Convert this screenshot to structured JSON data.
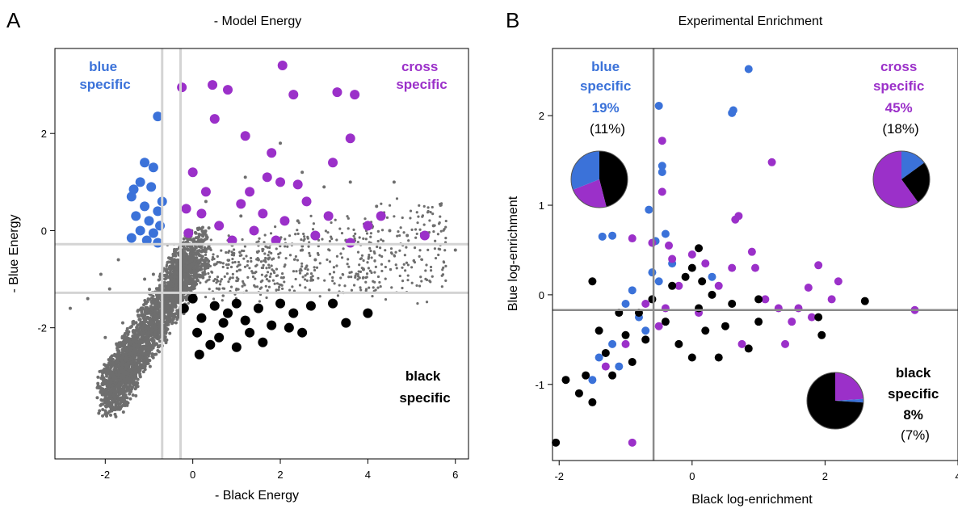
{
  "colors": {
    "blue": "#3b72d9",
    "purple": "#9b30c9",
    "black": "#000000",
    "grey": "#6e6e6e",
    "gridline_a": "#d4d4d4",
    "gridline_b": "#8a8a8a"
  },
  "chart_data": [
    {
      "type": "scatter",
      "panel_letter": "A",
      "title": "- Model Energy",
      "xlabel": "- Black Energy",
      "ylabel": "- Blue Energy",
      "xlim": [
        -3.15,
        6.3
      ],
      "ylim": [
        -4.7,
        3.75
      ],
      "xticks": [
        -2,
        0,
        2,
        4,
        6
      ],
      "yticks": [
        -2,
        0,
        2
      ],
      "thresholds": {
        "x": [
          -0.7,
          -0.28
        ],
        "y": [
          -0.28,
          -1.28
        ]
      },
      "grid": false,
      "annotations": [
        {
          "lines": [
            "blue",
            "specific"
          ],
          "color_key": "blue"
        },
        {
          "lines": [
            "cross",
            "specific"
          ],
          "color_key": "purple"
        },
        {
          "lines": [
            "black",
            "specific"
          ],
          "color_key": "black"
        }
      ],
      "series": [
        {
          "color_key": "grey",
          "points": [
            [
              -1.8,
              -3.0
            ],
            [
              -1.6,
              -2.6
            ],
            [
              -1.4,
              -2.3
            ],
            [
              -1.2,
              -2.0
            ],
            [
              -1.0,
              -1.7
            ],
            [
              -0.8,
              -1.3
            ],
            [
              -0.6,
              -0.8
            ],
            [
              -0.4,
              -0.4
            ],
            [
              0.5,
              -0.7
            ],
            [
              1.5,
              -0.6
            ],
            [
              2.5,
              -0.4
            ],
            [
              3.5,
              -0.2
            ],
            [
              4.5,
              0.0
            ],
            [
              5.5,
              0.1
            ],
            [
              6.0,
              -0.4
            ],
            [
              2.0,
              1.8
            ],
            [
              2.5,
              1.2
            ],
            [
              3.0,
              0.9
            ],
            [
              3.6,
              1.0
            ],
            [
              4.6,
              1.0
            ],
            [
              4.2,
              0.5
            ],
            [
              0.3,
              0.6
            ],
            [
              1.2,
              1.1
            ],
            [
              -2.4,
              -1.4
            ],
            [
              -2.8,
              -1.6
            ],
            [
              -2.1,
              -0.9
            ],
            [
              -1.7,
              -0.6
            ],
            [
              -1.5,
              -3.6
            ],
            [
              -1.3,
              -3.4
            ],
            [
              0.9,
              -0.3
            ],
            [
              1.9,
              -0.2
            ],
            [
              2.8,
              -0.6
            ],
            [
              3.9,
              -0.8
            ],
            [
              0.6,
              -1.2
            ],
            [
              -0.2,
              -1.1
            ],
            [
              1.1,
              0.3
            ],
            [
              2.4,
              0.2
            ],
            [
              4.9,
              -0.1
            ],
            [
              -1.1,
              -1.0
            ],
            [
              -0.9,
              -0.9
            ],
            [
              -1.9,
              -1.2
            ],
            [
              -1.6,
              -1.9
            ],
            [
              -2.0,
              -2.2
            ],
            [
              -1.5,
              -2.8
            ],
            [
              -1.8,
              -3.3
            ]
          ]
        },
        {
          "color_key": "blue",
          "points": [
            [
              -0.8,
              2.35
            ],
            [
              -1.1,
              1.4
            ],
            [
              -0.9,
              1.3
            ],
            [
              -1.2,
              1.0
            ],
            [
              -0.95,
              0.9
            ],
            [
              -1.4,
              0.7
            ],
            [
              -1.1,
              0.5
            ],
            [
              -0.8,
              0.4
            ],
            [
              -1.3,
              0.3
            ],
            [
              -1.0,
              0.2
            ],
            [
              -0.75,
              0.1
            ],
            [
              -1.2,
              0.0
            ],
            [
              -0.9,
              -0.05
            ],
            [
              -1.4,
              -0.15
            ],
            [
              -1.05,
              -0.2
            ],
            [
              -0.8,
              -0.25
            ],
            [
              -0.7,
              0.6
            ],
            [
              -1.35,
              0.85
            ]
          ]
        },
        {
          "color_key": "purple",
          "points": [
            [
              2.05,
              3.4
            ],
            [
              -0.25,
              2.95
            ],
            [
              0.45,
              3.0
            ],
            [
              0.8,
              2.9
            ],
            [
              2.3,
              2.8
            ],
            [
              3.3,
              2.85
            ],
            [
              3.7,
              2.8
            ],
            [
              0.5,
              2.3
            ],
            [
              1.2,
              1.95
            ],
            [
              3.6,
              1.9
            ],
            [
              1.8,
              1.6
            ],
            [
              3.2,
              1.4
            ],
            [
              1.7,
              1.1
            ],
            [
              2.4,
              0.95
            ],
            [
              0.3,
              0.8
            ],
            [
              1.1,
              0.55
            ],
            [
              2.6,
              0.6
            ],
            [
              3.1,
              0.3
            ],
            [
              4.0,
              0.1
            ],
            [
              4.3,
              0.3
            ],
            [
              5.3,
              -0.1
            ],
            [
              0.6,
              0.1
            ],
            [
              1.4,
              0.0
            ],
            [
              2.1,
              0.2
            ],
            [
              2.8,
              -0.1
            ],
            [
              -0.1,
              -0.05
            ],
            [
              0.9,
              -0.2
            ],
            [
              1.9,
              -0.2
            ],
            [
              3.6,
              -0.25
            ],
            [
              0.2,
              0.35
            ],
            [
              -0.15,
              0.45
            ],
            [
              1.6,
              0.35
            ],
            [
              0.0,
              1.2
            ],
            [
              2.0,
              1.0
            ],
            [
              1.3,
              0.8
            ]
          ]
        },
        {
          "color_key": "black",
          "points": [
            [
              0.0,
              -1.4
            ],
            [
              0.5,
              -1.55
            ],
            [
              1.0,
              -1.5
            ],
            [
              1.5,
              -1.6
            ],
            [
              2.0,
              -1.5
            ],
            [
              0.2,
              -1.8
            ],
            [
              0.7,
              -1.9
            ],
            [
              1.2,
              -1.85
            ],
            [
              0.1,
              -2.1
            ],
            [
              0.6,
              -2.2
            ],
            [
              1.3,
              -2.1
            ],
            [
              1.8,
              -1.95
            ],
            [
              2.3,
              -1.7
            ],
            [
              2.7,
              -1.55
            ],
            [
              3.2,
              -1.5
            ],
            [
              3.5,
              -1.9
            ],
            [
              4.0,
              -1.7
            ],
            [
              2.2,
              -2.0
            ],
            [
              0.4,
              -2.35
            ],
            [
              0.15,
              -2.55
            ],
            [
              1.0,
              -2.4
            ],
            [
              1.6,
              -2.3
            ],
            [
              2.5,
              -2.1
            ],
            [
              -0.2,
              -1.6
            ],
            [
              0.8,
              -1.7
            ]
          ]
        }
      ]
    },
    {
      "type": "scatter",
      "panel_letter": "B",
      "title": "Experimental Enrichment",
      "xlabel": "Black log-enrichment",
      "ylabel": "Blue log-enrichment",
      "xlim": [
        -2.1,
        4.0
      ],
      "ylim": [
        -1.85,
        2.75
      ],
      "xticks": [
        -2,
        0,
        2,
        4
      ],
      "yticks": [
        -1,
        0,
        1,
        2
      ],
      "thresholds": {
        "x": [
          -0.58
        ],
        "y": [
          -0.17
        ]
      },
      "grid": false,
      "annotations": [
        {
          "lines": [
            "blue",
            "specific",
            "19%",
            "(11%)"
          ],
          "color_key": "blue"
        },
        {
          "lines": [
            "cross",
            "specific",
            "45%",
            "(18%)"
          ],
          "color_key": "purple"
        },
        {
          "lines": [
            "black",
            "specific",
            "8%",
            "(7%)"
          ],
          "color_key": "black"
        }
      ],
      "pies": [
        {
          "quadrant": "blue specific",
          "slices": [
            {
              "color_key": "black",
              "value": 0.46
            },
            {
              "color_key": "purple",
              "value": 0.23
            },
            {
              "color_key": "blue",
              "value": 0.31
            }
          ]
        },
        {
          "quadrant": "cross specific",
          "slices": [
            {
              "color_key": "blue",
              "value": 0.15
            },
            {
              "color_key": "black",
              "value": 0.25
            },
            {
              "color_key": "purple",
              "value": 0.6
            }
          ]
        },
        {
          "quadrant": "black specific",
          "slices": [
            {
              "color_key": "purple",
              "value": 0.24
            },
            {
              "color_key": "blue",
              "value": 0.02
            },
            {
              "color_key": "black",
              "value": 0.74
            }
          ]
        }
      ],
      "series": [
        {
          "color_key": "blue",
          "points": [
            [
              0.85,
              2.52
            ],
            [
              -0.5,
              2.11
            ],
            [
              0.6,
              2.03
            ],
            [
              0.62,
              2.06
            ],
            [
              -0.45,
              1.44
            ],
            [
              -0.45,
              1.37
            ],
            [
              -0.65,
              0.95
            ],
            [
              -1.35,
              0.65
            ],
            [
              -1.2,
              0.66
            ],
            [
              -0.4,
              0.68
            ],
            [
              -0.55,
              0.6
            ],
            [
              0.3,
              0.2
            ],
            [
              -0.9,
              0.05
            ],
            [
              -1.0,
              -0.1
            ],
            [
              -0.8,
              -0.25
            ],
            [
              -1.2,
              -0.55
            ],
            [
              -1.4,
              -0.7
            ],
            [
              -1.5,
              -0.95
            ],
            [
              -0.3,
              0.35
            ],
            [
              -0.7,
              -0.4
            ],
            [
              -0.5,
              0.15
            ],
            [
              -1.1,
              -0.8
            ],
            [
              -0.6,
              0.25
            ]
          ]
        },
        {
          "color_key": "purple",
          "points": [
            [
              -0.45,
              1.72
            ],
            [
              -0.45,
              1.15
            ],
            [
              1.2,
              1.48
            ],
            [
              0.7,
              0.88
            ],
            [
              0.65,
              0.84
            ],
            [
              -0.35,
              0.55
            ],
            [
              -0.9,
              0.63
            ],
            [
              -0.6,
              0.58
            ],
            [
              -0.3,
              0.4
            ],
            [
              0.0,
              0.45
            ],
            [
              0.2,
              0.35
            ],
            [
              0.6,
              0.3
            ],
            [
              0.9,
              0.48
            ],
            [
              0.95,
              0.3
            ],
            [
              1.1,
              -0.05
            ],
            [
              1.3,
              -0.15
            ],
            [
              1.6,
              -0.15
            ],
            [
              1.5,
              -0.3
            ],
            [
              1.75,
              0.08
            ],
            [
              1.9,
              0.33
            ],
            [
              2.2,
              0.15
            ],
            [
              2.1,
              -0.05
            ],
            [
              1.4,
              -0.55
            ],
            [
              0.75,
              -0.55
            ],
            [
              3.35,
              -0.17
            ],
            [
              -0.9,
              -1.65
            ],
            [
              -0.2,
              0.1
            ],
            [
              -0.7,
              -0.1
            ],
            [
              -1.0,
              -0.55
            ],
            [
              -0.5,
              -0.35
            ],
            [
              0.1,
              -0.2
            ],
            [
              -0.4,
              -0.15
            ],
            [
              1.8,
              -0.25
            ],
            [
              -1.3,
              -0.8
            ],
            [
              0.4,
              0.1
            ]
          ]
        },
        {
          "color_key": "black",
          "points": [
            [
              -2.05,
              -1.65
            ],
            [
              -1.5,
              -1.2
            ],
            [
              -1.6,
              -0.9
            ],
            [
              -1.3,
              -0.65
            ],
            [
              -1.0,
              -0.45
            ],
            [
              -0.8,
              -0.2
            ],
            [
              -0.6,
              -0.05
            ],
            [
              -0.3,
              0.1
            ],
            [
              0.0,
              0.3
            ],
            [
              0.1,
              0.52
            ],
            [
              -0.1,
              0.2
            ],
            [
              0.1,
              -0.15
            ],
            [
              0.2,
              -0.4
            ],
            [
              0.5,
              -0.35
            ],
            [
              -0.2,
              -0.55
            ],
            [
              -0.7,
              -0.5
            ],
            [
              0.0,
              -0.7
            ],
            [
              0.4,
              -0.7
            ],
            [
              0.85,
              -0.6
            ],
            [
              1.0,
              -0.05
            ],
            [
              1.0,
              -0.3
            ],
            [
              1.9,
              -0.25
            ],
            [
              1.95,
              -0.45
            ],
            [
              2.6,
              -0.07
            ],
            [
              -1.9,
              -0.95
            ],
            [
              -1.7,
              -1.1
            ],
            [
              -1.2,
              -0.9
            ],
            [
              -0.9,
              -0.75
            ],
            [
              -0.4,
              -0.3
            ],
            [
              0.3,
              0.0
            ],
            [
              -1.5,
              0.15
            ],
            [
              0.15,
              0.15
            ],
            [
              0.6,
              -0.1
            ],
            [
              -1.4,
              -0.4
            ],
            [
              -1.1,
              -0.2
            ]
          ]
        }
      ]
    }
  ]
}
